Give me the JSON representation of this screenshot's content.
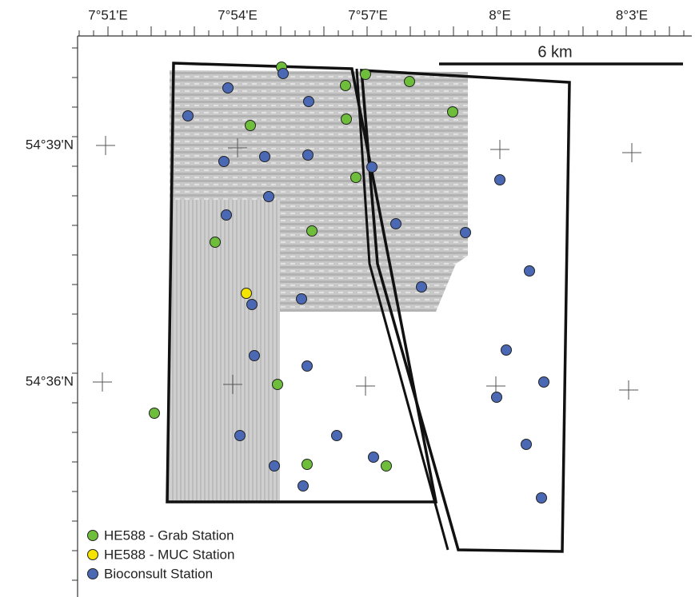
{
  "map": {
    "x_axis_labels": [
      "7°51'E",
      "7°54'E",
      "7°57'E",
      "8°E",
      "8°3'E"
    ],
    "y_axis_labels": [
      "54°39'N",
      "54°36'N"
    ],
    "scale_bar": "6 km",
    "legend": [
      {
        "label": "HE588 - Grab Station",
        "color": "#6ebe3c"
      },
      {
        "label": "HE588 - MUC Station",
        "color": "#f5e400"
      },
      {
        "label": "Bioconsult Station",
        "color": "#4a68b4"
      }
    ]
  }
}
